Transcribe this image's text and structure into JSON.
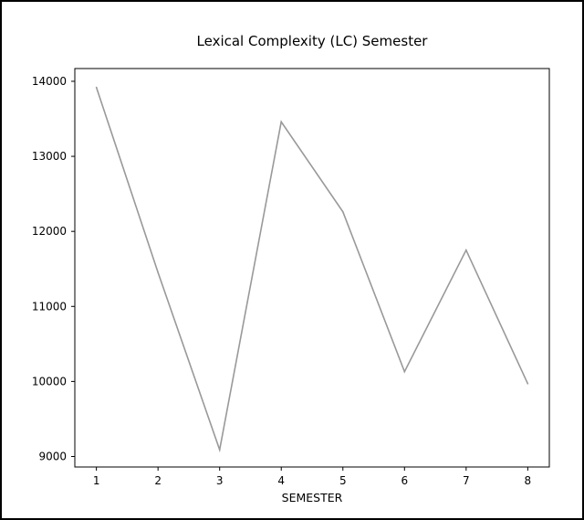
{
  "chart_data": {
    "type": "line",
    "title": "Lexical Complexity (LC) Semester",
    "xlabel": "SEMESTER",
    "ylabel": "",
    "x": [
      1,
      2,
      3,
      4,
      5,
      6,
      7,
      8
    ],
    "xticks": [
      "1",
      "2",
      "3",
      "4",
      "5",
      "6",
      "7",
      "8"
    ],
    "yticks": [
      9000,
      10000,
      11000,
      12000,
      13000,
      14000
    ],
    "ytick_labels": [
      "9000",
      "10000",
      "11000",
      "12000",
      "13000",
      "14000"
    ],
    "xlim": [
      0.65,
      8.35
    ],
    "ylim": [
      8860,
      14170
    ],
    "series": [
      {
        "values": [
          13920,
          11450,
          9090,
          13460,
          12260,
          10130,
          11750,
          9970
        ]
      }
    ],
    "line_color": "#999999",
    "grid": false,
    "legend": "none"
  }
}
